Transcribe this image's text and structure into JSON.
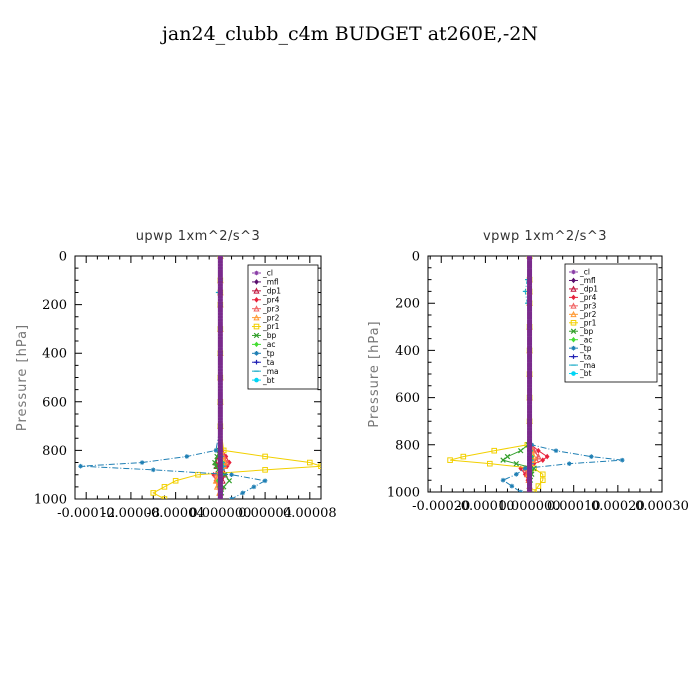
{
  "title": "jan24_clubb_c4m  BUDGET at260E,-2N",
  "chart_data": [
    {
      "type": "line",
      "title": "upwp   1xm^2/s^3",
      "xlabel": "",
      "ylabel": "Pressure [hPa]",
      "xlim": [
        -0.00013,
        9e-05
      ],
      "ylim": [
        1000,
        0
      ],
      "xticks": [
        -0.00012,
        -8e-05,
        -4e-05,
        0.0,
        4e-05,
        8e-05
      ],
      "xtick_labels": [
        "-0.00012",
        "-0.00008",
        "-0.00004",
        "0.000000",
        "0.00004",
        "0.00008"
      ],
      "yticks": [
        0,
        200,
        400,
        600,
        800,
        1000
      ],
      "ytick_labels": [
        "0",
        "200",
        "400",
        "600",
        "800",
        "1000"
      ],
      "legend_position": "top-right",
      "y": [
        0,
        100,
        150,
        200,
        300,
        400,
        500,
        600,
        700,
        800,
        825,
        850,
        865,
        880,
        900,
        925,
        950,
        975,
        1000
      ],
      "series": [
        {
          "name": "_cl",
          "color": "#8b3fa8",
          "marker": "star",
          "values": [
            0,
            0,
            0,
            0,
            0,
            0,
            0,
            0,
            0,
            0,
            0,
            0,
            0,
            0,
            0,
            0,
            0,
            0,
            0
          ]
        },
        {
          "name": "_mfl",
          "color": "#5a0f6e",
          "marker": "diamond",
          "values": [
            0,
            0,
            0,
            0,
            0,
            0,
            0,
            0,
            0,
            0,
            0,
            0,
            0,
            0,
            0,
            0,
            0,
            0,
            0
          ]
        },
        {
          "name": "_dp1",
          "color": "#c0143c",
          "marker": "triangle",
          "values": [
            0,
            0,
            0,
            0,
            0,
            0,
            0,
            0,
            0,
            1e-06,
            -2e-06,
            -4e-06,
            -3e-06,
            2e-06,
            4e-06,
            2e-06,
            1e-06,
            0,
            0
          ]
        },
        {
          "name": "_pr4",
          "color": "#e8223c",
          "marker": "diamond",
          "values": [
            0,
            0,
            0,
            0,
            0,
            0,
            0,
            0,
            0,
            2e-06,
            5e-06,
            8e-06,
            6e-06,
            2e-06,
            -6e-06,
            -4e-06,
            -2e-06,
            0,
            0
          ]
        },
        {
          "name": "_pr3",
          "color": "#f06060",
          "marker": "triangle",
          "values": [
            0,
            0,
            0,
            0,
            0,
            0,
            0,
            0,
            0,
            1e-06,
            3e-06,
            6e-06,
            4e-06,
            1e-06,
            -4e-06,
            -3e-06,
            -1e-06,
            0,
            0
          ]
        },
        {
          "name": "_pr2",
          "color": "#ff9933",
          "marker": "triangle",
          "values": [
            0,
            0,
            0,
            0,
            0,
            0,
            0,
            0,
            0,
            0,
            2e-06,
            4e-06,
            3e-06,
            1e-06,
            -2e-06,
            -4e-06,
            -3e-06,
            -1e-06,
            0
          ]
        },
        {
          "name": "_pr1",
          "color": "#f2d000",
          "marker": "square",
          "values": [
            0,
            0,
            0,
            0,
            0,
            0,
            0,
            0,
            0,
            3e-06,
            4e-05,
            8e-05,
            9e-05,
            4e-05,
            -2e-05,
            -4e-05,
            -5e-05,
            -6e-05,
            -5e-05
          ]
        },
        {
          "name": "_bp",
          "color": "#33a02c",
          "marker": "x",
          "values": [
            0,
            0,
            0,
            0,
            0,
            0,
            0,
            0,
            0,
            -1e-06,
            -3e-06,
            -5e-06,
            -4e-06,
            -2e-06,
            4e-06,
            8e-06,
            3e-06,
            1e-06,
            0
          ]
        },
        {
          "name": "_ac",
          "color": "#44dd33",
          "marker": "diamond",
          "values": [
            0,
            0,
            0,
            0,
            0,
            0,
            0,
            0,
            0,
            0,
            1e-06,
            2e-06,
            2e-06,
            1e-06,
            -1e-06,
            -2e-06,
            -1e-06,
            0,
            0
          ]
        },
        {
          "name": "_tp",
          "color": "#1f7fb4",
          "marker": "star",
          "values": [
            0,
            0,
            0,
            0,
            0,
            0,
            0,
            0,
            0,
            -4e-06,
            -3e-05,
            -7e-05,
            -0.000125,
            -6e-05,
            1e-05,
            4e-05,
            3e-05,
            2e-05,
            1e-05
          ]
        },
        {
          "name": "_ta",
          "color": "#1f1fb4",
          "marker": "plus",
          "values": [
            0,
            0,
            0,
            0,
            0,
            0,
            0,
            0,
            0,
            0,
            0,
            0,
            0,
            0,
            0,
            0,
            0,
            0,
            0
          ]
        },
        {
          "name": "_ma",
          "color": "#17aac6",
          "marker": "dash",
          "values": [
            0,
            0,
            -2e-06,
            0,
            0,
            0,
            0,
            0,
            0,
            0,
            1e-06,
            2e-06,
            3e-06,
            2e-06,
            1e-06,
            0,
            0,
            0,
            0
          ]
        },
        {
          "name": "_bt",
          "color": "#00d5f5",
          "marker": "circle",
          "values": [
            0,
            0,
            0,
            0,
            0,
            0,
            0,
            0,
            0,
            0,
            0,
            0,
            0,
            0,
            0,
            0,
            0,
            0,
            0
          ]
        }
      ]
    },
    {
      "type": "line",
      "title": "vpwp   1xm^2/s^3",
      "xlabel": "",
      "ylabel": "Pressure [hPa]",
      "xlim": [
        -0.00023,
        0.0003
      ],
      "ylim": [
        1000,
        0
      ],
      "xticks": [
        -0.0002,
        -0.0001,
        0.0,
        0.0001,
        0.0002,
        0.0003
      ],
      "xtick_labels": [
        "-0.00020",
        "-0.00010",
        "0.000000",
        "0.00010",
        "0.00020",
        "0.00030"
      ],
      "yticks": [
        0,
        200,
        400,
        600,
        800,
        1000
      ],
      "ytick_labels": [
        "0",
        "200",
        "400",
        "600",
        "800",
        "1000"
      ],
      "legend_position": "top-right",
      "y": [
        0,
        100,
        150,
        200,
        300,
        400,
        500,
        600,
        700,
        800,
        825,
        850,
        865,
        880,
        900,
        925,
        950,
        975,
        1000
      ],
      "series": [
        {
          "name": "_cl",
          "color": "#8b3fa8",
          "marker": "star",
          "values": [
            0,
            0,
            0,
            0,
            0,
            0,
            0,
            0,
            0,
            0,
            0,
            0,
            0,
            0,
            0,
            0,
            0,
            0,
            0
          ]
        },
        {
          "name": "_mfl",
          "color": "#5a0f6e",
          "marker": "diamond",
          "values": [
            0,
            0,
            0,
            0,
            0,
            0,
            0,
            0,
            0,
            0,
            0,
            0,
            0,
            0,
            0,
            0,
            0,
            0,
            0
          ]
        },
        {
          "name": "_dp1",
          "color": "#c0143c",
          "marker": "triangle",
          "values": [
            0,
            0,
            0,
            0,
            0,
            0,
            0,
            0,
            0,
            2e-06,
            1e-05,
            2e-05,
            1.5e-05,
            5e-06,
            -1e-05,
            -5e-06,
            -2e-06,
            0,
            0
          ]
        },
        {
          "name": "_pr4",
          "color": "#e8223c",
          "marker": "diamond",
          "values": [
            0,
            0,
            0,
            0,
            0,
            0,
            0,
            0,
            0,
            4e-06,
            2e-05,
            4e-05,
            3e-05,
            1e-05,
            -2e-05,
            -1e-05,
            -4e-06,
            0,
            0
          ]
        },
        {
          "name": "_pr3",
          "color": "#f06060",
          "marker": "triangle",
          "values": [
            0,
            0,
            0,
            0,
            0,
            0,
            0,
            0,
            0,
            2e-06,
            1e-05,
            2e-05,
            1.5e-05,
            5e-06,
            -1e-05,
            -6e-06,
            -2e-06,
            0,
            0
          ]
        },
        {
          "name": "_pr2",
          "color": "#ff9933",
          "marker": "triangle",
          "values": [
            0,
            0,
            0,
            0,
            0,
            0,
            0,
            0,
            0,
            0,
            5e-06,
            1e-05,
            8e-06,
            3e-06,
            -5e-06,
            -3e-06,
            -1e-06,
            0,
            0
          ]
        },
        {
          "name": "_pr1",
          "color": "#f2d000",
          "marker": "square",
          "values": [
            0,
            0,
            0,
            0,
            0,
            0,
            0,
            0,
            0,
            -5e-06,
            -8e-05,
            -0.00015,
            -0.00018,
            -9e-05,
            1e-05,
            3e-05,
            3e-05,
            2e-05,
            1e-05
          ]
        },
        {
          "name": "_bp",
          "color": "#33a02c",
          "marker": "x",
          "values": [
            0,
            0,
            0,
            0,
            0,
            0,
            0,
            0,
            0,
            -3e-06,
            -2e-05,
            -5e-05,
            -6e-05,
            -3e-05,
            1e-05,
            5e-06,
            2e-06,
            0,
            0
          ]
        },
        {
          "name": "_ac",
          "color": "#44dd33",
          "marker": "diamond",
          "values": [
            0,
            0,
            0,
            0,
            0,
            0,
            0,
            0,
            0,
            0,
            3e-06,
            5e-06,
            4e-06,
            2e-06,
            -2e-06,
            -1e-06,
            0,
            0,
            0
          ]
        },
        {
          "name": "_tp",
          "color": "#1f7fb4",
          "marker": "star",
          "values": [
            0,
            0,
            0,
            0,
            0,
            0,
            0,
            0,
            0,
            5e-06,
            6e-05,
            0.00014,
            0.00021,
            9e-05,
            -1e-05,
            -3e-05,
            -6e-05,
            -4e-05,
            -2e-05
          ]
        },
        {
          "name": "_ta",
          "color": "#1f1fb4",
          "marker": "plus",
          "values": [
            0,
            0,
            0,
            0,
            0,
            0,
            0,
            0,
            0,
            0,
            0,
            0,
            0,
            0,
            0,
            0,
            0,
            0,
            0
          ]
        },
        {
          "name": "_ma",
          "color": "#17aac6",
          "marker": "dash",
          "values": [
            0,
            -5e-06,
            -1e-05,
            -5e-06,
            0,
            0,
            0,
            0,
            0,
            0,
            2e-06,
            4e-06,
            5e-06,
            4e-06,
            2e-06,
            0,
            0,
            0,
            0
          ]
        },
        {
          "name": "_bt",
          "color": "#00d5f5",
          "marker": "circle",
          "values": [
            0,
            0,
            0,
            0,
            0,
            0,
            0,
            0,
            0,
            0,
            0,
            0,
            0,
            0,
            0,
            0,
            0,
            0,
            0
          ]
        }
      ]
    }
  ]
}
